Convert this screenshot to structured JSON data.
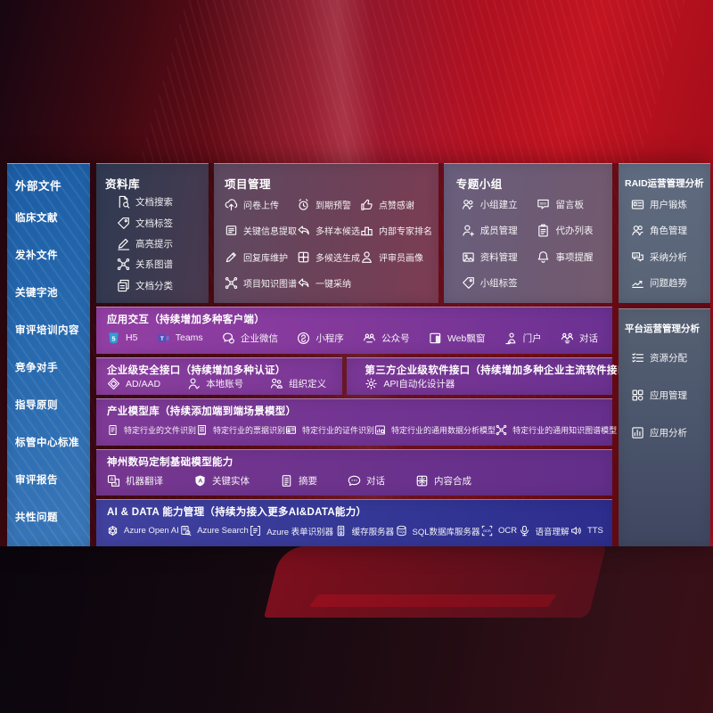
{
  "colors": {
    "background_red": "#b11120",
    "left_panel_blue": "#2769ae",
    "purple_row": "#7e3a97",
    "indigo_row": "#353a9b",
    "slate_panel": "#5c6678"
  },
  "external_files": {
    "title": "外部文件",
    "items": [
      "临床文献",
      "发补文件",
      "关键字池",
      "审评培训内容",
      "竞争对手",
      "指导原则",
      "标管中心标准",
      "审评报告",
      "共性问题"
    ]
  },
  "repository": {
    "title": "资料库",
    "items": [
      {
        "icon": "doc-search-icon",
        "label": "文档搜索"
      },
      {
        "icon": "tag-icon",
        "label": "文档标签"
      },
      {
        "icon": "highlight-pen-icon",
        "label": "高亮提示"
      },
      {
        "icon": "knowledge-graph-icon",
        "label": "关系图谱"
      },
      {
        "icon": "doc-category-icon",
        "label": "文档分类"
      }
    ]
  },
  "project": {
    "title": "项目管理",
    "items": [
      {
        "icon": "cloud-upload-icon",
        "label": "问卷上传"
      },
      {
        "icon": "alarm-icon",
        "label": "到期预警"
      },
      {
        "icon": "thumbs-up-icon",
        "label": "点赞感谢"
      },
      {
        "icon": "doc-extract-icon",
        "label": "关键信息提取"
      },
      {
        "icon": "reply-icon",
        "label": "多样本候选"
      },
      {
        "icon": "ranking-icon",
        "label": "内部专家排名"
      },
      {
        "icon": "pencil-icon",
        "label": "回复库维护"
      },
      {
        "icon": "generate-grid-icon",
        "label": "多候选生成"
      },
      {
        "icon": "person-icon",
        "label": "评审员画像"
      },
      {
        "icon": "knowledge-graph-icon",
        "label": "项目知识图谱"
      },
      {
        "icon": "adopt-arrow-icon",
        "label": "一键采纳"
      }
    ]
  },
  "topics": {
    "title": "专题小组",
    "items": [
      {
        "icon": "group-icon",
        "label": "小组建立"
      },
      {
        "icon": "bbs-icon",
        "label": "留言板"
      },
      {
        "icon": "member-add-icon",
        "label": "成员管理"
      },
      {
        "icon": "todo-list-icon",
        "label": "代办列表"
      },
      {
        "icon": "materials-icon",
        "label": "资料管理"
      },
      {
        "icon": "bell-icon",
        "label": "事项提醒"
      },
      {
        "icon": "tag-icon",
        "label": "小组标签"
      }
    ]
  },
  "raid": {
    "title": "RAID运营管理分析",
    "items": [
      {
        "icon": "id-card-icon",
        "label": "用户锻炼"
      },
      {
        "icon": "roles-icon",
        "label": "角色管理"
      },
      {
        "icon": "qa-chat-icon",
        "label": "采纳分析"
      },
      {
        "icon": "trend-chart-icon",
        "label": "问题趋势"
      }
    ]
  },
  "platform": {
    "title": "平台运营管理分析",
    "items": [
      {
        "icon": "checklist-icon",
        "label": "资源分配"
      },
      {
        "icon": "apps-grid-icon",
        "label": "应用管理"
      },
      {
        "icon": "app-analysis-icon",
        "label": "应用分析"
      }
    ]
  },
  "interaction": {
    "title": "应用交互（持续增加多种客户端）",
    "items": [
      {
        "icon": "h5-icon",
        "label": "H5"
      },
      {
        "icon": "teams-icon",
        "label": "Teams"
      },
      {
        "icon": "wechat-work-icon",
        "label": "企业微信"
      },
      {
        "icon": "miniprogram-icon",
        "label": "小程序"
      },
      {
        "icon": "official-account-icon",
        "label": "公众号"
      },
      {
        "icon": "web-popup-icon",
        "label": "Web飘窗"
      },
      {
        "icon": "portal-icon",
        "label": "门户"
      },
      {
        "icon": "dialog-icon",
        "label": "对话"
      }
    ]
  },
  "security": {
    "title": "企业级安全接口（持续增加多种认证）",
    "items": [
      {
        "icon": "ad-icon",
        "label": "AD/AAD"
      },
      {
        "icon": "local-account-icon",
        "label": "本地账号"
      },
      {
        "icon": "org-define-icon",
        "label": "组织定义"
      }
    ]
  },
  "third_party": {
    "title": "第三方企业级软件接口（持续增加多种企业主流软件接口）",
    "items": [
      {
        "icon": "api-gear-icon",
        "label": "API自动化设计器"
      }
    ]
  },
  "industry": {
    "title": "产业模型库（持续添加端到端场景模型）",
    "items": [
      {
        "icon": "file-recognize-icon",
        "label": "特定行业的文件识别"
      },
      {
        "icon": "invoice-recognize-icon",
        "label": "特定行业的票据识别"
      },
      {
        "icon": "idcard-recognize-icon",
        "label": "特定行业的证件识别"
      },
      {
        "icon": "data-analysis-icon",
        "label": "特定行业的通用数据分析模型"
      },
      {
        "icon": "knowledge-graph-icon",
        "label": "特定行业的通用知识图谱模型"
      }
    ]
  },
  "dcits": {
    "title": "神州数码定制基础模型能力",
    "items": [
      {
        "icon": "translate-icon",
        "label": "机器翻译"
      },
      {
        "icon": "entity-shield-icon",
        "label": "关键实体"
      },
      {
        "icon": "summary-icon",
        "label": "摘要"
      },
      {
        "icon": "chat-icon",
        "label": "对话"
      },
      {
        "icon": "compose-icon",
        "label": "内容合成"
      }
    ]
  },
  "aidata": {
    "title": "AI & DATA 能力管理（持续为接入更多AI&DATA能力）",
    "items": [
      {
        "icon": "openai-icon",
        "label": "Azure Open AI"
      },
      {
        "icon": "azure-search-icon",
        "label": "Azure Search"
      },
      {
        "icon": "form-recognizer-icon",
        "label": "Azure 表单识别器"
      },
      {
        "icon": "cache-server-icon",
        "label": "缓存服务器"
      },
      {
        "icon": "sql-db-icon",
        "label": "SQL数据库服务器"
      },
      {
        "icon": "ocr-icon",
        "label": "OCR"
      },
      {
        "icon": "speech-icon",
        "label": "语音理解"
      },
      {
        "icon": "tts-icon",
        "label": "TTS"
      }
    ]
  }
}
